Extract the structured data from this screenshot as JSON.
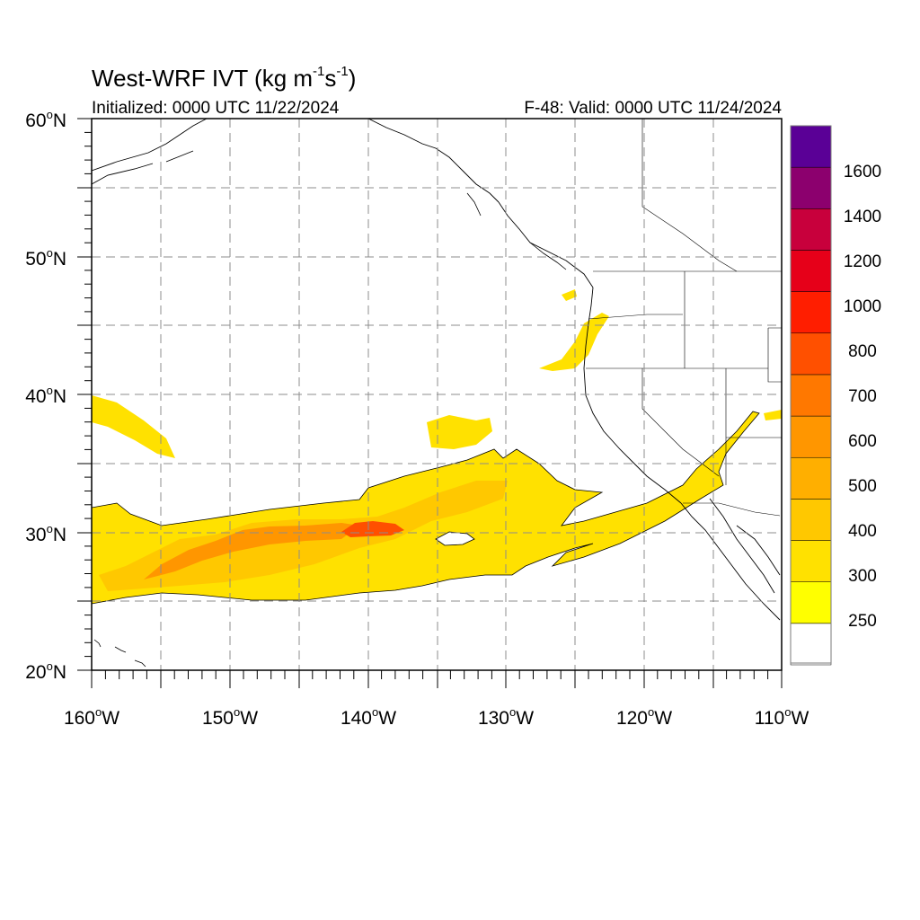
{
  "header": {
    "title_main": "West-WRF IVT (kg m",
    "title_sup1": "-1",
    "title_mid": "s",
    "title_sup2": "-1",
    "title_end": ")",
    "initialized": "Initialized: 0000 UTC 11/22/2024",
    "valid": "F-48: Valid: 0000 UTC 11/24/2024"
  },
  "map": {
    "lat_labels": [
      "60",
      "50",
      "40",
      "30",
      "20"
    ],
    "lat_suffix": "N",
    "lon_labels": [
      "160",
      "150",
      "140",
      "130",
      "120",
      "110"
    ],
    "lon_suffix": "W",
    "degree_mark": "o",
    "lon_range": [
      -160,
      -110
    ],
    "lat_range": [
      20,
      60
    ],
    "grid": "dashed, every 5 degrees"
  },
  "colorbar": {
    "labels": [
      "250",
      "300",
      "400",
      "500",
      "600",
      "700",
      "800",
      "1000",
      "1200",
      "1400",
      "1600"
    ],
    "colors": [
      "#ffffff",
      "#ffff00",
      "#ffe100",
      "#ffc800",
      "#ffaf00",
      "#ff9600",
      "#ff7800",
      "#ff5000",
      "#ff1e00",
      "#e60019",
      "#c8003c",
      "#8c006e",
      "#5a0096"
    ]
  },
  "colors": {
    "ivt_low": "#ffe100",
    "ivt_mid": "#ffc800",
    "ivt_high": "#ff9600",
    "ivt_peak": "#ff5000",
    "coast": "#000000"
  }
}
